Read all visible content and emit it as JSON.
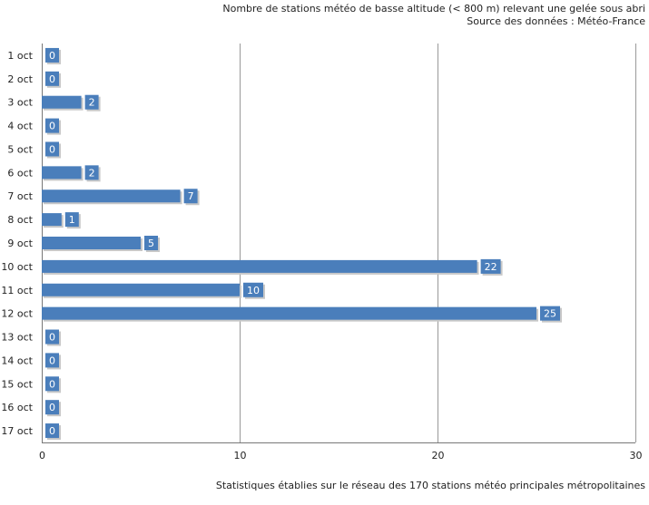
{
  "chart_data": {
    "type": "bar",
    "orientation": "horizontal",
    "title": "Nombre de stations météo de basse altitude (< 800 m) relevant une gelée sous abri",
    "subtitle": "Source des données : Météo-France",
    "footnote": "Statistiques établies sur le réseau des 170 stations météo principales métropolitaines",
    "categories": [
      "1 oct",
      "2 oct",
      "3 oct",
      "4 oct",
      "5 oct",
      "6 oct",
      "7 oct",
      "8 oct",
      "9 oct",
      "10 oct",
      "11 oct",
      "12 oct",
      "13 oct",
      "14 oct",
      "15 oct",
      "16 oct",
      "17 oct"
    ],
    "values": [
      0,
      0,
      2,
      0,
      0,
      2,
      7,
      1,
      5,
      22,
      10,
      25,
      0,
      0,
      0,
      0,
      0
    ],
    "xlim": [
      0,
      30
    ],
    "xticks": [
      0,
      10,
      20,
      30
    ],
    "grid": true,
    "bar_color": "#4a7ebb"
  }
}
